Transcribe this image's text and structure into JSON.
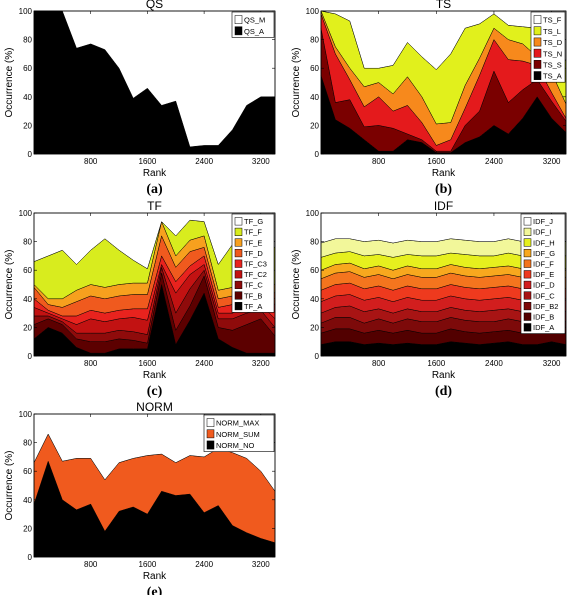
{
  "chart_data": [
    {
      "type": "area",
      "title": "QS",
      "panel_label": "(a)",
      "xlabel": "Rank",
      "ylabel": "Occurrence (%)",
      "xlim": [
        0,
        3400
      ],
      "ylim": [
        0,
        100
      ],
      "xticks": [
        800,
        1600,
        2400,
        3200
      ],
      "yticks": [
        0,
        20,
        40,
        60,
        80,
        100
      ],
      "legend_position": "top-right",
      "x": [
        0,
        200,
        400,
        600,
        800,
        1000,
        1200,
        1400,
        1600,
        1800,
        2000,
        2200,
        2400,
        2600,
        2800,
        3000,
        3200,
        3400
      ],
      "series": [
        {
          "name": "QS_A",
          "color": "#000000",
          "values": [
            100,
            100,
            100,
            74,
            77,
            73,
            60,
            39,
            46,
            34,
            37,
            5,
            6,
            6,
            17,
            34,
            40,
            40
          ]
        },
        {
          "name": "QS_M",
          "color": "#ffffff",
          "values": [
            0,
            0,
            0,
            26,
            23,
            27,
            40,
            61,
            54,
            66,
            63,
            95,
            94,
            94,
            83,
            66,
            60,
            60
          ]
        }
      ]
    },
    {
      "type": "area",
      "title": "TS",
      "panel_label": "(b)",
      "xlabel": "Rank",
      "ylabel": "Occurrence (%)",
      "xlim": [
        0,
        3400
      ],
      "ylim": [
        0,
        100
      ],
      "xticks": [
        800,
        1600,
        2400,
        3200
      ],
      "yticks": [
        0,
        20,
        40,
        60,
        80,
        100
      ],
      "legend_position": "top-right",
      "x": [
        0,
        200,
        400,
        600,
        800,
        1000,
        1200,
        1400,
        1600,
        1800,
        2000,
        2200,
        2400,
        2600,
        2800,
        3000,
        3200,
        3400
      ],
      "series": [
        {
          "name": "TS_A",
          "color": "#000000",
          "values": [
            55,
            24,
            18,
            10,
            2,
            2,
            10,
            8,
            1,
            1,
            8,
            12,
            20,
            14,
            25,
            40,
            25,
            15
          ]
        },
        {
          "name": "TS_S",
          "color": "#7a0000",
          "values": [
            33,
            12,
            20,
            9,
            18,
            16,
            4,
            2,
            1,
            1,
            12,
            18,
            38,
            22,
            20,
            12,
            12,
            8
          ]
        },
        {
          "name": "TS_N",
          "color": "#e41a1c",
          "values": [
            10,
            34,
            14,
            14,
            20,
            12,
            20,
            12,
            4,
            8,
            12,
            25,
            22,
            30,
            20,
            10,
            6,
            2
          ]
        },
        {
          "name": "TS_D",
          "color": "#f7891c",
          "values": [
            2,
            5,
            8,
            14,
            10,
            12,
            20,
            18,
            15,
            12,
            16,
            12,
            8,
            14,
            12,
            6,
            14,
            10
          ]
        },
        {
          "name": "TS_L",
          "color": "#e1f01c",
          "values": [
            0,
            23,
            33,
            13,
            10,
            20,
            24,
            28,
            38,
            48,
            40,
            24,
            10,
            10,
            12,
            20,
            22,
            30
          ]
        },
        {
          "name": "TS_F",
          "color": "#ffffff",
          "values": [
            0,
            2,
            7,
            40,
            40,
            38,
            22,
            32,
            41,
            30,
            12,
            9,
            2,
            10,
            11,
            12,
            21,
            35
          ]
        }
      ]
    },
    {
      "type": "area",
      "title": "TF",
      "panel_label": "(c)",
      "xlabel": "Rank",
      "ylabel": "Occurrence (%)",
      "xlim": [
        0,
        3400
      ],
      "ylim": [
        0,
        100
      ],
      "xticks": [
        800,
        1600,
        2400,
        3200
      ],
      "yticks": [
        0,
        20,
        40,
        60,
        80,
        100
      ],
      "legend_position": "top-right",
      "x": [
        0,
        200,
        400,
        600,
        800,
        1000,
        1200,
        1400,
        1600,
        1800,
        2000,
        2200,
        2400,
        2600,
        2800,
        3000,
        3200,
        3400
      ],
      "series": [
        {
          "name": "TF_A",
          "color": "#000000",
          "values": [
            12,
            20,
            16,
            6,
            2,
            2,
            5,
            5,
            5,
            50,
            8,
            25,
            44,
            12,
            6,
            2,
            2,
            2
          ]
        },
        {
          "name": "TF_B",
          "color": "#5c0000",
          "values": [
            10,
            6,
            6,
            6,
            8,
            8,
            7,
            6,
            4,
            8,
            10,
            10,
            12,
            8,
            12,
            20,
            24,
            12
          ]
        },
        {
          "name": "TF_C",
          "color": "#8f0b0b",
          "values": [
            6,
            2,
            2,
            4,
            6,
            6,
            6,
            6,
            6,
            4,
            12,
            12,
            4,
            6,
            8,
            8,
            6,
            6
          ]
        },
        {
          "name": "TF_C2",
          "color": "#c21212",
          "values": [
            6,
            2,
            2,
            6,
            10,
            8,
            8,
            10,
            10,
            2,
            14,
            10,
            4,
            4,
            4,
            4,
            4,
            6
          ]
        },
        {
          "name": "TF_C3",
          "color": "#e8231e",
          "values": [
            6,
            2,
            2,
            6,
            6,
            6,
            6,
            6,
            8,
            6,
            8,
            6,
            6,
            4,
            6,
            6,
            6,
            10
          ]
        },
        {
          "name": "TF_D",
          "color": "#f05a1e",
          "values": [
            8,
            4,
            6,
            10,
            10,
            10,
            10,
            10,
            10,
            14,
            10,
            10,
            6,
            6,
            6,
            6,
            6,
            8
          ]
        },
        {
          "name": "TF_E",
          "color": "#f7a01e",
          "values": [
            2,
            4,
            6,
            8,
            8,
            8,
            8,
            8,
            8,
            10,
            8,
            8,
            8,
            6,
            6,
            6,
            6,
            6
          ]
        },
        {
          "name": "TF_F",
          "color": "#d8ec1e",
          "values": [
            16,
            30,
            34,
            18,
            24,
            34,
            24,
            16,
            10,
            0,
            14,
            14,
            10,
            18,
            30,
            24,
            24,
            26
          ]
        },
        {
          "name": "TF_G",
          "color": "#ffffff",
          "values": [
            34,
            30,
            26,
            36,
            26,
            18,
            26,
            33,
            39,
            6,
            16,
            5,
            6,
            36,
            22,
            24,
            22,
            24
          ]
        }
      ]
    },
    {
      "type": "area",
      "title": "IDF",
      "panel_label": "(d)",
      "xlabel": "Rank",
      "ylabel": "Occurrence (%)",
      "xlim": [
        0,
        3400
      ],
      "ylim": [
        0,
        100
      ],
      "xticks": [
        800,
        1600,
        2400,
        3200
      ],
      "yticks": [
        0,
        20,
        40,
        60,
        80,
        100
      ],
      "legend_position": "top-right",
      "x": [
        0,
        200,
        400,
        600,
        800,
        1000,
        1200,
        1400,
        1600,
        1800,
        2000,
        2200,
        2400,
        2600,
        2800,
        3000,
        3200,
        3400
      ],
      "series": [
        {
          "name": "IDF_A",
          "color": "#000000",
          "values": [
            8,
            10,
            10,
            8,
            9,
            8,
            9,
            8,
            8,
            10,
            9,
            8,
            9,
            10,
            8,
            8,
            10,
            8
          ]
        },
        {
          "name": "IDF_B",
          "color": "#520000",
          "values": [
            8,
            9,
            9,
            8,
            9,
            8,
            9,
            8,
            8,
            9,
            8,
            8,
            8,
            8,
            8,
            8,
            8,
            8
          ]
        },
        {
          "name": "IDF_B2",
          "color": "#7d0a0a",
          "values": [
            7,
            8,
            8,
            7,
            8,
            7,
            8,
            8,
            8,
            8,
            8,
            8,
            7,
            8,
            8,
            7,
            8,
            8
          ]
        },
        {
          "name": "IDF_C",
          "color": "#a81414",
          "values": [
            7,
            7,
            8,
            8,
            7,
            7,
            7,
            7,
            7,
            7,
            7,
            7,
            8,
            7,
            7,
            7,
            7,
            7
          ]
        },
        {
          "name": "IDF_D",
          "color": "#d21e1e",
          "values": [
            8,
            8,
            8,
            8,
            8,
            8,
            8,
            8,
            8,
            8,
            8,
            8,
            8,
            8,
            8,
            8,
            8,
            8
          ]
        },
        {
          "name": "IDF_E",
          "color": "#ee3a1e",
          "values": [
            8,
            8,
            8,
            8,
            8,
            8,
            8,
            8,
            8,
            8,
            8,
            8,
            8,
            8,
            8,
            8,
            8,
            8
          ]
        },
        {
          "name": "IDF_F",
          "color": "#f4751e",
          "values": [
            8,
            8,
            8,
            8,
            8,
            8,
            8,
            8,
            8,
            8,
            8,
            8,
            8,
            8,
            8,
            8,
            8,
            8
          ]
        },
        {
          "name": "IDF_G",
          "color": "#f8a81e",
          "values": [
            6,
            6,
            6,
            6,
            6,
            6,
            6,
            6,
            6,
            6,
            6,
            6,
            6,
            6,
            6,
            6,
            6,
            6
          ]
        },
        {
          "name": "IDF_H",
          "color": "#e6f01e",
          "values": [
            9,
            8,
            8,
            9,
            8,
            9,
            8,
            9,
            9,
            8,
            9,
            9,
            8,
            9,
            9,
            9,
            8,
            9
          ]
        },
        {
          "name": "IDF_I",
          "color": "#f2f79a",
          "values": [
            10,
            10,
            9,
            10,
            10,
            10,
            10,
            10,
            10,
            10,
            10,
            10,
            10,
            10,
            10,
            10,
            10,
            10
          ]
        },
        {
          "name": "IDF_J",
          "color": "#ffffff",
          "values": [
            21,
            18,
            18,
            20,
            19,
            21,
            19,
            20,
            20,
            18,
            19,
            20,
            20,
            18,
            20,
            21,
            19,
            20
          ]
        }
      ]
    },
    {
      "type": "area",
      "title": "NORM",
      "panel_label": "(e)",
      "xlabel": "Rank",
      "ylabel": "Occurrence (%)",
      "xlim": [
        0,
        3400
      ],
      "ylim": [
        0,
        100
      ],
      "xticks": [
        800,
        1600,
        2400,
        3200
      ],
      "yticks": [
        0,
        20,
        40,
        60,
        80,
        100
      ],
      "legend_position": "top-right",
      "x": [
        0,
        200,
        400,
        600,
        800,
        1000,
        1200,
        1400,
        1600,
        1800,
        2000,
        2200,
        2400,
        2600,
        2800,
        3000,
        3200,
        3400
      ],
      "series": [
        {
          "name": "NORM_NO",
          "color": "#000000",
          "values": [
            37,
            67,
            40,
            33,
            37,
            18,
            32,
            35,
            30,
            46,
            43,
            44,
            31,
            36,
            22,
            17,
            13,
            10
          ]
        },
        {
          "name": "NORM_SUM",
          "color": "#f05a1e",
          "values": [
            29,
            19,
            27,
            36,
            32,
            36,
            34,
            34,
            41,
            26,
            23,
            27,
            39,
            40,
            51,
            52,
            47,
            36
          ]
        },
        {
          "name": "NORM_MAX",
          "color": "#ffffff",
          "values": [
            34,
            14,
            33,
            31,
            31,
            46,
            34,
            31,
            29,
            28,
            34,
            29,
            30,
            24,
            27,
            31,
            40,
            54
          ]
        }
      ]
    }
  ]
}
